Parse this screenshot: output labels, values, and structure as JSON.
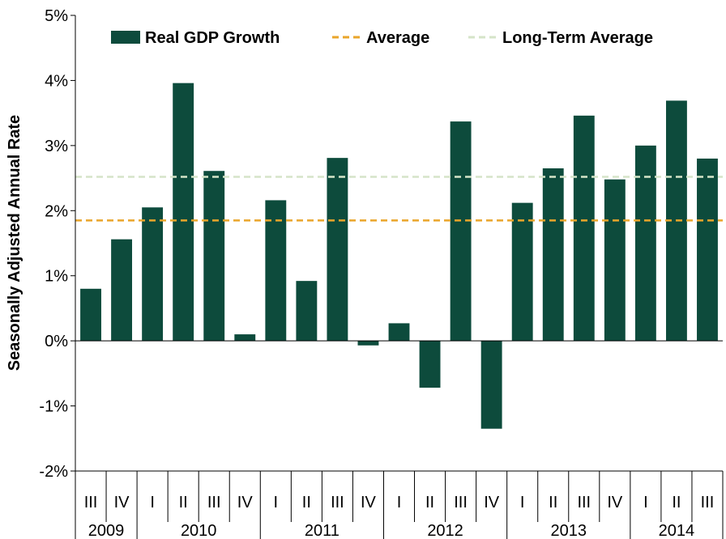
{
  "chart_data": {
    "type": "bar",
    "ylabel": "Seasonally Adjusted Annual Rate",
    "ylim": [
      -2,
      5
    ],
    "ytick_values": [
      -2,
      -1,
      0,
      1,
      2,
      3,
      4,
      5
    ],
    "ytick_labels": [
      "-2%",
      "-1%",
      "0%",
      "1%",
      "2%",
      "3%",
      "4%",
      "5%"
    ],
    "grid": false,
    "legend_position": "top",
    "categories": [
      "III",
      "IV",
      "I",
      "II",
      "III",
      "IV",
      "I",
      "II",
      "III",
      "IV",
      "I",
      "II",
      "III",
      "IV",
      "I",
      "II",
      "III",
      "IV",
      "I",
      "II",
      "III"
    ],
    "years": [
      {
        "label": "2009",
        "quarters": 2
      },
      {
        "label": "2010",
        "quarters": 4
      },
      {
        "label": "2011",
        "quarters": 4
      },
      {
        "label": "2012",
        "quarters": 4
      },
      {
        "label": "2013",
        "quarters": 4
      },
      {
        "label": "2014",
        "quarters": 3
      }
    ],
    "series": [
      {
        "name": "Real GDP Growth",
        "type": "bar",
        "color": "#0d4b3c",
        "values": [
          0.8,
          1.56,
          2.05,
          3.96,
          2.61,
          0.1,
          2.16,
          0.92,
          2.81,
          -0.07,
          0.27,
          -0.72,
          3.37,
          -1.35,
          2.12,
          2.65,
          3.46,
          2.48,
          3.0,
          3.69,
          2.8
        ]
      },
      {
        "name": "Average",
        "type": "line",
        "style": "dashed",
        "color": "#eaa52a",
        "value": 1.85
      },
      {
        "name": "Long-Term Average",
        "type": "line",
        "style": "dashed",
        "color": "#d5e4c8",
        "value": 2.52
      }
    ]
  }
}
